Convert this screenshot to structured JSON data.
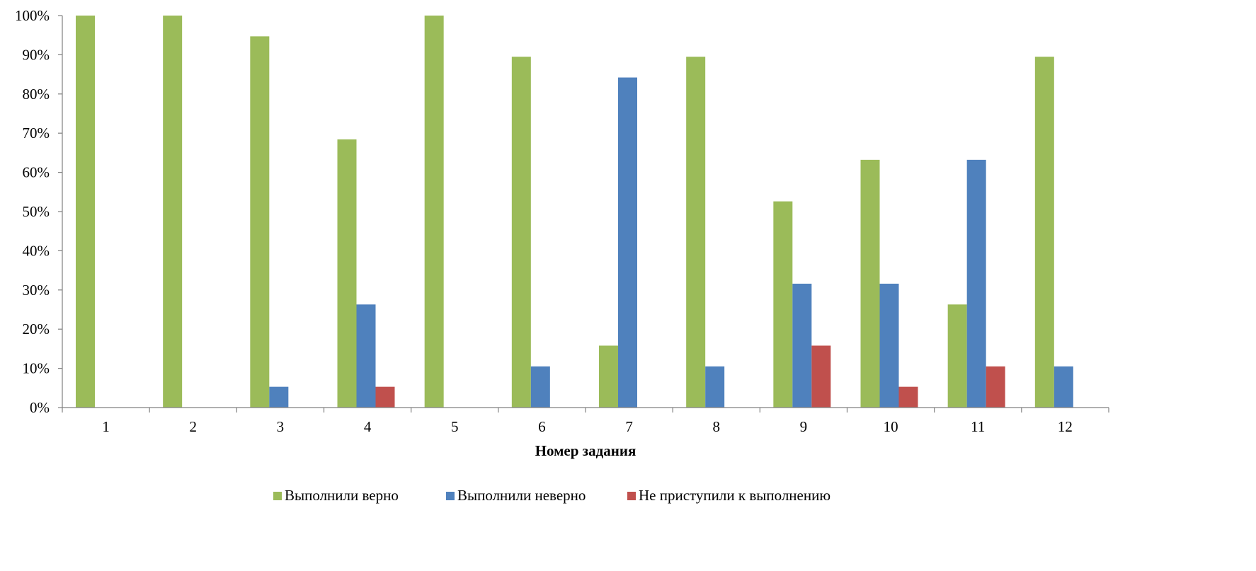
{
  "chart_data": {
    "type": "bar",
    "title": "",
    "xlabel": "Номер задания",
    "ylabel": "",
    "categories": [
      "1",
      "2",
      "3",
      "4",
      "5",
      "6",
      "7",
      "8",
      "9",
      "10",
      "11",
      "12"
    ],
    "ylim": [
      0,
      100
    ],
    "y_ticks": [
      "0%",
      "10%",
      "20%",
      "30%",
      "40%",
      "50%",
      "60%",
      "70%",
      "80%",
      "90%",
      "100%"
    ],
    "grid": false,
    "legend_position": "bottom",
    "series": [
      {
        "name": "Выполнили верно",
        "color": "#9BBB59",
        "values": [
          100,
          100,
          94.7,
          68.4,
          100,
          89.5,
          15.8,
          89.5,
          52.6,
          63.2,
          26.3,
          89.5
        ]
      },
      {
        "name": "Выполнили неверно",
        "color": "#4F81BD",
        "values": [
          0,
          0,
          5.3,
          26.3,
          0,
          10.5,
          84.2,
          10.5,
          31.6,
          31.6,
          63.2,
          10.5
        ]
      },
      {
        "name": "Не приступили к выполнению",
        "color": "#C0504D",
        "values": [
          0,
          0,
          0,
          5.3,
          0,
          0,
          0,
          0,
          15.8,
          5.3,
          10.5,
          0
        ]
      }
    ]
  }
}
